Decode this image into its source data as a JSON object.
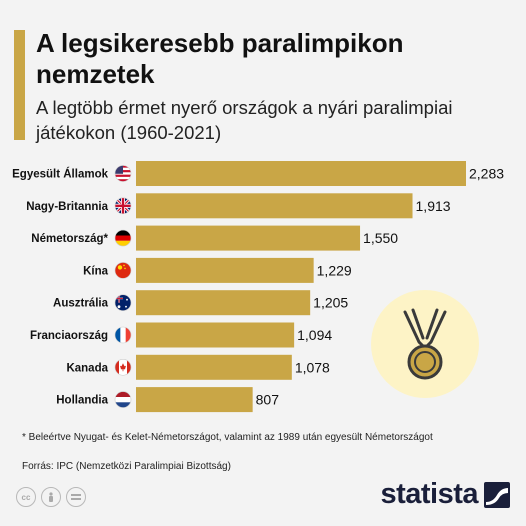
{
  "header": {
    "title": "A legsikeresebb paralimpikon nemzetek",
    "subtitle": "A legtöbb érmet nyerő országok a nyári paralimpiai játékokon (1960-2021)"
  },
  "chart_data": {
    "type": "bar",
    "orientation": "horizontal",
    "categories": [
      "Egyesült Államok",
      "Nagy-Britannia",
      "Németország*",
      "Kína",
      "Ausztrália",
      "Franciaország",
      "Kanada",
      "Hollandia"
    ],
    "values": [
      2283,
      1913,
      1550,
      1229,
      1205,
      1094,
      1078,
      807
    ],
    "value_labels": [
      "2,283",
      "1,913",
      "1,550",
      "1,229",
      "1,205",
      "1,094",
      "1,078",
      "807"
    ],
    "flags": [
      "us",
      "gb",
      "de",
      "cn",
      "au",
      "fr",
      "ca",
      "nl"
    ],
    "bar_color": "#c9a646",
    "xlim": [
      0,
      2283
    ],
    "grid": false,
    "legend": "none"
  },
  "footnote": "* Beleértve Nyugat- és Kelet-Németországot, valamint az 1989 után egyesült Németországot",
  "source": "Forrás: IPC (Nemzetközi Paralimpiai Bizottság)",
  "license_icons": [
    "cc-icon",
    "by-icon",
    "nd-icon"
  ],
  "brand": {
    "name": "statista",
    "color": "#1a1f3a"
  },
  "colors": {
    "accent": "#c9a646",
    "background": "#f3f3f3",
    "medal_circle": "#fdf3c6"
  }
}
